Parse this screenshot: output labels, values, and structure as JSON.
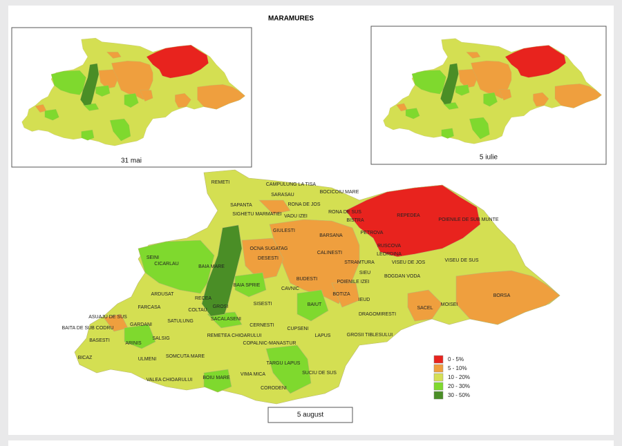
{
  "header": {
    "title": "MARAMURES"
  },
  "maps": [
    {
      "caption": "31 mai"
    },
    {
      "caption": "5 iulie"
    },
    {
      "caption": "5 august",
      "labels": [
        "REMETI",
        "CAMPULUNG LA TISA",
        "SARASAU",
        "BOCICOIU MARE",
        "SAPANTA",
        "RONA DE JOS",
        "RONA DE SUS",
        "SIGHETU MARMATIEI",
        "VADU IZEI",
        "BISTRA",
        "REPEDEA",
        "POIENILE DE SUB MUNTE",
        "GIULESTI",
        "BARSANA",
        "PETROVA",
        "RUSCOVA",
        "LEORDINA",
        "OCNA SUGATAG",
        "DESESTI",
        "CALINESTI",
        "SEINI",
        "CICARLAU",
        "BAIA MARE",
        "STRAMTURA",
        "VISEU DE JOS",
        "VISEU DE SUS",
        "SIEU",
        "BUDESTI",
        "POIENILE IZEI",
        "BOGDAN VODA",
        "BAIA SPRIE",
        "ARDUSAT",
        "CAVNIC",
        "RECEA",
        "SISESTI",
        "BOTIZA",
        "IEUD",
        "BORSA",
        "BAIUT",
        "FARCASA",
        "COLTAU",
        "GROSI",
        "MOISEI",
        "SACEL",
        "ASUAJU DE SUS",
        "DRAGOMIRESTI",
        "SACALASENI",
        "GARDANI",
        "SATULUNG",
        "CERNESTI",
        "CUPSENI",
        "BAITA DE SUB CODRU",
        "REMETEA CHIOARULUI",
        "LAPUS",
        "GROSII TIBLESULUI",
        "BASESTI",
        "ARINIS",
        "SALSIG",
        "COPALNIC-MANASTUR",
        "SOMCUTA MARE",
        "TARGU LAPUS",
        "BICAZ",
        "ULMENI",
        "VIMA MICA",
        "SUCIU DE SUS",
        "VALEA CHIOARULUI",
        "BOIU MARE",
        "CORODENI"
      ]
    }
  ],
  "legend": [
    {
      "label": "0 - 5%",
      "color": "#e8231e"
    },
    {
      "label": "5 - 10%",
      "color": "#ef9f3e"
    },
    {
      "label": "10 - 20%",
      "color": "#d5df55"
    },
    {
      "label": "20 - 30%",
      "color": "#7fd92e"
    },
    {
      "label": "30 - 50%",
      "color": "#4a8e26"
    }
  ]
}
